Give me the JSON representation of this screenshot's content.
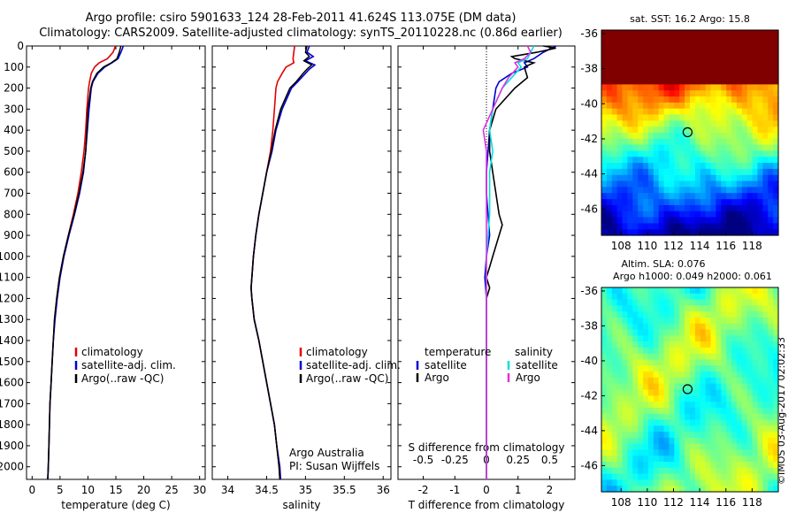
{
  "header": {
    "line1": "Argo profile: csiro 5901633_124 28-Feb-2011 41.624S 113.075E (DM data)",
    "line2": "Climatology: CARS2009. Satellite-adjusted climatology: synTS_20110228.nc (0.86d earlier)"
  },
  "depth_axis": {
    "ylim": [
      0,
      2060
    ],
    "ticks": [
      0,
      100,
      200,
      300,
      400,
      500,
      600,
      700,
      800,
      900,
      1000,
      1100,
      1200,
      1300,
      1400,
      1500,
      1600,
      1700,
      1800,
      1900,
      2000
    ]
  },
  "legend": {
    "climatology": "climatology",
    "satellite": "satellite-adj. clim.",
    "argo": "Argo(..raw -QC)"
  },
  "diff_legend": {
    "temperature": "temperature",
    "salinity": "salinity",
    "satellite": "satellite",
    "argo": "Argo"
  },
  "credits": {
    "group": "Argo Australia",
    "pi": "PI: Susan Wijffels",
    "imos": "©IMOS 03-Aug-2017 02:02:33"
  },
  "map_titles": {
    "sst": "sat. SST: 16.2  Argo: 15.8",
    "sla": "Altim. SLA: 0.076",
    "heights": "Argo h1000: 0.049  h2000: 0.061"
  },
  "colors": {
    "climatology": "#e00000",
    "satellite": "#0000d0",
    "argo": "#000000",
    "salinity_satellite": "#00e0e0",
    "salinity_argo": "#e030e0"
  },
  "chart_data": [
    {
      "type": "line",
      "xlabel": "temperature (deg C)",
      "ylabel": "",
      "xlim": [
        -1,
        31
      ],
      "xticks": [
        0,
        5,
        10,
        15,
        20,
        25,
        30
      ],
      "ylim": [
        0,
        2060
      ],
      "series": [
        {
          "name": "climatology",
          "color": "#e00000",
          "depth": [
            0,
            10,
            30,
            60,
            80,
            100,
            130,
            170,
            200,
            300,
            400,
            500,
            600,
            700,
            800,
            900,
            1000,
            1100,
            1200,
            1300,
            1400,
            1500,
            1600,
            1700,
            1800,
            1900,
            2000,
            2060
          ],
          "values": [
            14.9,
            14.8,
            14.5,
            13.5,
            12.0,
            11.2,
            10.6,
            10.3,
            10.1,
            9.8,
            9.6,
            9.3,
            8.8,
            8.2,
            7.4,
            6.5,
            5.6,
            4.9,
            4.4,
            4.0,
            3.8,
            3.6,
            3.4,
            3.2,
            3.1,
            3.0,
            2.9,
            2.8
          ]
        },
        {
          "name": "satellite-adj. clim.",
          "color": "#0000d0",
          "depth": [
            0,
            10,
            30,
            60,
            80,
            100,
            130,
            170,
            200,
            300,
            400,
            500,
            600,
            700,
            800,
            900,
            1000,
            1100,
            1200,
            1300,
            1400,
            1500,
            1600,
            1700,
            1800,
            1900,
            2000,
            2060
          ],
          "values": [
            16.3,
            16.2,
            15.9,
            15.4,
            14.3,
            13.0,
            11.8,
            10.9,
            10.6,
            10.2,
            9.9,
            9.6,
            9.2,
            8.5,
            7.6,
            6.6,
            5.7,
            5.0,
            4.5,
            4.1,
            3.8,
            3.6,
            3.4,
            3.2,
            3.1,
            3.0,
            2.9,
            2.8
          ]
        },
        {
          "name": "Argo(..raw -QC)",
          "color": "#000000",
          "depth": [
            0,
            10,
            30,
            60,
            80,
            100,
            130,
            170,
            200,
            300,
            400,
            500,
            600,
            700,
            800,
            900,
            1000,
            1100,
            1200,
            1300,
            1400,
            1500,
            1600,
            1700,
            1800,
            1900,
            2000,
            2060
          ],
          "values": [
            15.9,
            15.8,
            15.6,
            15.2,
            14.2,
            12.8,
            11.6,
            10.8,
            10.5,
            10.0,
            9.8,
            9.6,
            9.1,
            8.4,
            7.5,
            6.5,
            5.6,
            4.9,
            4.4,
            4.0,
            3.8,
            3.6,
            3.4,
            3.2,
            3.1,
            3.0,
            2.9,
            2.8
          ]
        }
      ]
    },
    {
      "type": "line",
      "xlabel": "salinity",
      "ylabel": "",
      "xlim": [
        33.8,
        36.1
      ],
      "xticks": [
        34,
        34.5,
        35,
        35.5,
        36
      ],
      "ylim": [
        0,
        2060
      ],
      "series": [
        {
          "name": "climatology",
          "color": "#e00000",
          "depth": [
            0,
            30,
            60,
            80,
            100,
            130,
            170,
            200,
            300,
            400,
            500,
            600,
            700,
            800,
            900,
            1000,
            1100,
            1150,
            1200,
            1300,
            1400,
            1500,
            1600,
            1700,
            1800,
            1900,
            2000,
            2060
          ],
          "values": [
            34.86,
            34.85,
            34.84,
            34.85,
            34.75,
            34.7,
            34.64,
            34.62,
            34.6,
            34.58,
            34.55,
            34.5,
            34.45,
            34.4,
            34.36,
            34.33,
            34.31,
            34.3,
            34.31,
            34.34,
            34.4,
            34.45,
            34.5,
            34.55,
            34.6,
            34.63,
            34.66,
            34.67
          ]
        },
        {
          "name": "satellite-adj. clim.",
          "color": "#0000d0",
          "depth": [
            0,
            30,
            50,
            70,
            90,
            110,
            130,
            170,
            200,
            300,
            400,
            500,
            600,
            700,
            800,
            900,
            1000,
            1100,
            1150,
            1200,
            1300,
            1400,
            1500,
            1600,
            1700,
            1800,
            1900,
            2000,
            2060
          ],
          "values": [
            35.05,
            35.02,
            35.1,
            35.0,
            35.12,
            35.05,
            35.0,
            34.9,
            34.82,
            34.7,
            34.62,
            34.57,
            34.5,
            34.45,
            34.4,
            34.36,
            34.33,
            34.31,
            34.3,
            34.31,
            34.34,
            34.4,
            34.45,
            34.5,
            34.55,
            34.6,
            34.63,
            34.67,
            34.68
          ]
        },
        {
          "name": "Argo(..raw -QC)",
          "color": "#000000",
          "depth": [
            0,
            30,
            50,
            70,
            90,
            110,
            130,
            170,
            200,
            300,
            400,
            500,
            600,
            700,
            800,
            900,
            1000,
            1100,
            1150,
            1200,
            1300,
            1400,
            1500,
            1600,
            1700,
            1800,
            1900,
            2000,
            2060
          ],
          "values": [
            35.02,
            35.0,
            35.05,
            34.98,
            35.08,
            35.02,
            34.97,
            34.88,
            34.8,
            34.68,
            34.61,
            34.56,
            34.5,
            34.45,
            34.4,
            34.36,
            34.33,
            34.31,
            34.3,
            34.31,
            34.34,
            34.4,
            34.45,
            34.5,
            34.55,
            34.6,
            34.63,
            34.66,
            34.67
          ]
        }
      ]
    },
    {
      "type": "line",
      "xlabel": "T difference from climatology",
      "ylabel": "",
      "xlim": [
        -2.8,
        2.8
      ],
      "xticks": [
        -2,
        -1,
        0,
        1,
        2
      ],
      "top_axis_label": "S difference from climatology",
      "top_ticks": [
        "-0.5",
        "-0.25",
        "0",
        "0.25",
        "0.5"
      ],
      "ylim": [
        0,
        2060
      ],
      "series": [
        {
          "name": "temperature satellite",
          "color": "#0000d0",
          "depth": [
            0,
            30,
            60,
            80,
            100,
            130,
            170,
            200,
            300,
            400,
            500,
            600,
            700,
            800,
            900,
            1000,
            1100,
            1200,
            1300,
            1400,
            1500,
            1600,
            1700,
            1800,
            1900,
            2000,
            2060
          ],
          "values": [
            2.2,
            1.8,
            1.5,
            1.2,
            1.3,
            0.8,
            0.4,
            0.3,
            0.2,
            0.1,
            0.05,
            0.0,
            0.0,
            0.05,
            0.1,
            0.0,
            -0.05,
            0.0,
            0.0,
            0.0,
            0.0,
            0.0,
            0.0,
            0.0,
            0.0,
            0.0,
            0.0
          ]
        },
        {
          "name": "temperature Argo",
          "color": "#000000",
          "depth": [
            0,
            10,
            30,
            50,
            60,
            80,
            100,
            150,
            200,
            300,
            400,
            500,
            600,
            700,
            800,
            850,
            900,
            950,
            1000,
            1050,
            1100,
            1150,
            1200,
            1300,
            1400,
            1500,
            1600,
            1700,
            1800,
            1900,
            2000,
            2060
          ],
          "values": [
            1.8,
            2.2,
            1.6,
            0.8,
            0.9,
            1.5,
            1.2,
            1.3,
            0.9,
            0.3,
            0.1,
            0.1,
            0.2,
            0.3,
            0.4,
            0.5,
            0.4,
            0.3,
            0.2,
            0.1,
            0.0,
            0.1,
            0.0,
            0.0,
            0.0,
            0.0,
            0.0,
            0.0,
            0.0,
            0.0,
            0.0,
            0.0
          ]
        },
        {
          "name": "salinity satellite",
          "color": "#00e0e0",
          "depth": [
            0,
            30,
            60,
            80,
            100,
            150,
            200,
            300,
            400,
            500,
            600,
            700,
            800,
            900,
            1000,
            1100,
            1200,
            1300,
            1400,
            1500,
            1600,
            1700,
            1800,
            1900,
            2000,
            2060
          ],
          "values": [
            1.5,
            1.4,
            1.3,
            1.0,
            1.1,
            0.8,
            0.5,
            0.2,
            0.1,
            0.2,
            0.1,
            0.1,
            0.1,
            0.05,
            0.0,
            0.0,
            0.0,
            0.0,
            0.0,
            0.0,
            0.0,
            0.0,
            0.0,
            0.0,
            0.0,
            0.0
          ]
        },
        {
          "name": "salinity Argo",
          "color": "#e030e0",
          "depth": [
            0,
            30,
            60,
            80,
            100,
            150,
            200,
            300,
            400,
            500,
            600,
            700,
            800,
            900,
            1000,
            1100,
            1200,
            1300,
            1400,
            1500,
            1600,
            1700,
            1800,
            1900,
            2000,
            2060
          ],
          "values": [
            1.3,
            1.4,
            1.2,
            0.9,
            1.0,
            0.7,
            0.5,
            0.2,
            -0.1,
            0.0,
            0.0,
            0.0,
            0.0,
            0.0,
            0.0,
            0.0,
            0.0,
            0.0,
            0.0,
            0.0,
            0.0,
            0.0,
            0.0,
            0.0,
            0.0,
            0.0
          ]
        }
      ]
    },
    {
      "type": "heatmap",
      "title": "sat. SST: 16.2  Argo: 15.8",
      "xticks": [
        108,
        110,
        112,
        114,
        116,
        118
      ],
      "yticks": [
        -36,
        -38,
        -40,
        -42,
        -44,
        -46
      ],
      "xlim": [
        106.5,
        120
      ],
      "ylim": [
        -47.5,
        -35.8
      ],
      "marker": {
        "lon": 113.075,
        "lat": -41.624
      }
    },
    {
      "type": "heatmap",
      "title": "Altim. SLA: 0.076",
      "subtitle": "Argo h1000: 0.049  h2000: 0.061",
      "xticks": [
        108,
        110,
        112,
        114,
        116,
        118
      ],
      "yticks": [
        -36,
        -38,
        -40,
        -42,
        -44,
        -46
      ],
      "xlim": [
        106.5,
        120
      ],
      "ylim": [
        -47.5,
        -35.8
      ],
      "marker": {
        "lon": 113.075,
        "lat": -41.624
      }
    }
  ]
}
